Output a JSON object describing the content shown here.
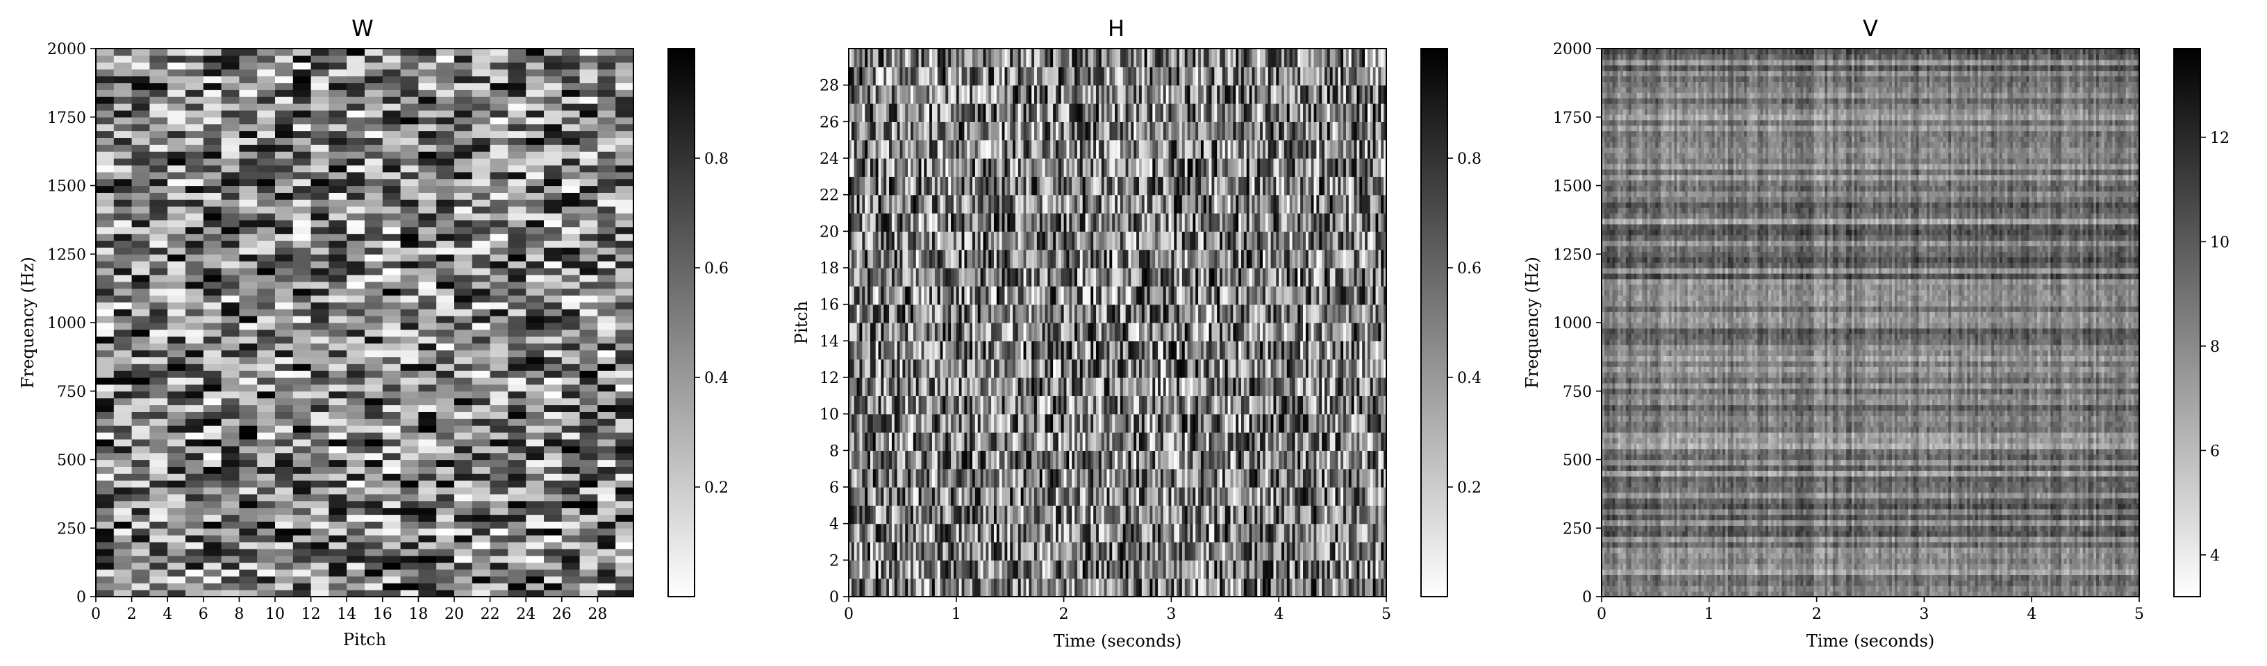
{
  "chart_data": [
    {
      "type": "heatmap",
      "title": "W",
      "xlabel": "Pitch",
      "ylabel": "Frequency (Hz)",
      "colormap": "gray_r",
      "rows": 80,
      "cols": 30,
      "xlim": [
        0,
        30
      ],
      "ylim": [
        0,
        2000
      ],
      "xticks": [
        0,
        2,
        4,
        6,
        8,
        10,
        12,
        14,
        16,
        18,
        20,
        22,
        24,
        26,
        28
      ],
      "yticks": [
        0,
        250,
        500,
        750,
        1000,
        1250,
        1500,
        1750,
        2000
      ],
      "colorbar": {
        "min": 0,
        "max": 1,
        "ticks": [
          0.2,
          0.4,
          0.6,
          0.8
        ]
      }
    },
    {
      "type": "heatmap",
      "title": "H",
      "xlabel": "Time (seconds)",
      "ylabel": "Pitch",
      "colormap": "gray_r",
      "rows": 30,
      "cols": 200,
      "xlim": [
        0,
        5
      ],
      "ylim": [
        0,
        30
      ],
      "xticks": [
        0,
        1,
        2,
        3,
        4,
        5
      ],
      "yticks": [
        0,
        2,
        4,
        6,
        8,
        10,
        12,
        14,
        16,
        18,
        20,
        22,
        24,
        26,
        28
      ],
      "colorbar": {
        "min": 0,
        "max": 1,
        "ticks": [
          0.2,
          0.4,
          0.6,
          0.8
        ]
      }
    },
    {
      "type": "heatmap",
      "title": "V",
      "xlabel": "Time (seconds)",
      "ylabel": "Frequency (Hz)",
      "colormap": "gray_r",
      "rows": 100,
      "cols": 200,
      "xlim": [
        0,
        5
      ],
      "ylim": [
        0,
        2000
      ],
      "xticks": [
        0,
        1,
        2,
        3,
        4,
        5
      ],
      "yticks": [
        0,
        250,
        500,
        750,
        1000,
        1250,
        1500,
        1750,
        2000
      ],
      "colorbar": {
        "min": 3.2,
        "max": 13.7,
        "ticks": [
          4,
          6,
          8,
          10,
          12
        ]
      }
    }
  ]
}
